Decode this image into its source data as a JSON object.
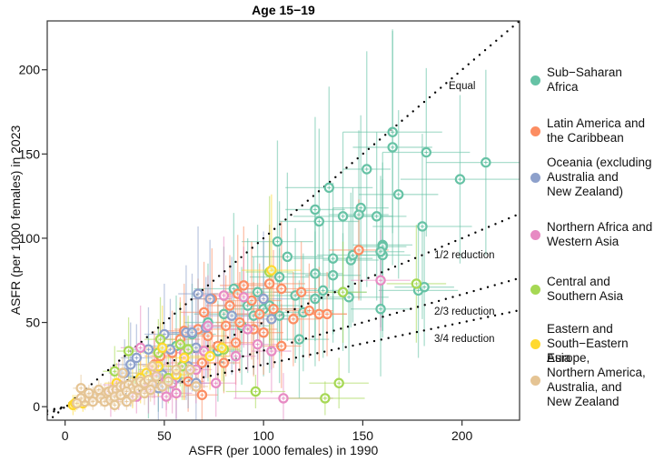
{
  "chart_data": {
    "type": "scatter",
    "title": "Age 15−19",
    "xlabel": "ASFR (per 1000 females) in 1990",
    "ylabel": "ASFR (per 1000 females) in 2023",
    "xlim": [
      -9,
      229
    ],
    "ylim": [
      -8,
      229
    ],
    "xticks": [
      0,
      50,
      100,
      150,
      200
    ],
    "yticks": [
      0,
      50,
      100,
      150,
      200
    ],
    "grid": false,
    "legend_position": "right",
    "reference_lines": [
      {
        "name": "Equal",
        "slope": 1.0,
        "label": "Equal"
      },
      {
        "name": "half",
        "slope": 0.5,
        "label": "1/2 reduction"
      },
      {
        "name": "two-thirds",
        "slope": 0.3333,
        "label": "2/3 reduction"
      },
      {
        "name": "three-quarters",
        "slope": 0.25,
        "label": "3/4 reduction"
      }
    ],
    "series": [
      {
        "name": "Sub−Saharan\nAfrica",
        "color": "#66c2a5",
        "points": [
          [
            165,
            163,
            25,
            60
          ],
          [
            165,
            154,
            20,
            70
          ],
          [
            182,
            151,
            22,
            50
          ],
          [
            212,
            145,
            30,
            55
          ],
          [
            199,
            135,
            30,
            50
          ],
          [
            152,
            141,
            12,
            70
          ],
          [
            168,
            126,
            20,
            50
          ],
          [
            133,
            130,
            22,
            60
          ],
          [
            140,
            113,
            25,
            50
          ],
          [
            180,
            107,
            25,
            55
          ],
          [
            107,
            98,
            18,
            60
          ],
          [
            149,
            118,
            14,
            55
          ],
          [
            160,
            96,
            15,
            55
          ],
          [
            157,
            113,
            15,
            50
          ],
          [
            178,
            69,
            20,
            40
          ],
          [
            181,
            71,
            15,
            35
          ],
          [
            159,
            58,
            15,
            40
          ],
          [
            148,
            114,
            15,
            50
          ],
          [
            128,
            110,
            20,
            55
          ],
          [
            126,
            117,
            15,
            55
          ],
          [
            112,
            89,
            18,
            50
          ],
          [
            135,
            88,
            20,
            45
          ],
          [
            144,
            87,
            14,
            40
          ],
          [
            145,
            90,
            18,
            40
          ],
          [
            160,
            90,
            14,
            45
          ],
          [
            108,
            77,
            15,
            45
          ],
          [
            126,
            64,
            14,
            40
          ],
          [
            130,
            69,
            12,
            40
          ],
          [
            143,
            65,
            20,
            45
          ],
          [
            140,
            68,
            12,
            35
          ],
          [
            126,
            79,
            14,
            40
          ],
          [
            116,
            66,
            15,
            40
          ],
          [
            85,
            70,
            20,
            45
          ],
          [
            97,
            68,
            18,
            40
          ],
          [
            92,
            60,
            15,
            40
          ],
          [
            100,
            58,
            15,
            40
          ],
          [
            108,
            54,
            12,
            40
          ],
          [
            120,
            56,
            14,
            35
          ],
          [
            135,
            78,
            14,
            40
          ],
          [
            118,
            40,
            15,
            35
          ],
          [
            103,
            60,
            15,
            40
          ],
          [
            80,
            55,
            15,
            40
          ],
          [
            72,
            50,
            12,
            35
          ],
          [
            89,
            48,
            14,
            35
          ],
          [
            64,
            43,
            12,
            30
          ],
          [
            56,
            36,
            12,
            30
          ],
          [
            47,
            22,
            10,
            25
          ],
          [
            42,
            18,
            10,
            25
          ],
          [
            77,
            33,
            12,
            30
          ],
          [
            95,
            54,
            12,
            35
          ],
          [
            160,
            95,
            12,
            50
          ],
          [
            159,
            92,
            12,
            45
          ]
        ]
      },
      {
        "name": "Latin America and\nthe Caribbean",
        "color": "#fc8d62",
        "points": [
          [
            148,
            93,
            15,
            30
          ],
          [
            109,
            70,
            18,
            40
          ],
          [
            103,
            73,
            18,
            35
          ],
          [
            105,
            58,
            14,
            35
          ],
          [
            87,
            67,
            14,
            35
          ],
          [
            94,
            63,
            15,
            35
          ],
          [
            119,
            68,
            14,
            30
          ],
          [
            128,
            55,
            14,
            28
          ],
          [
            115,
            52,
            14,
            28
          ],
          [
            123,
            57,
            12,
            28
          ],
          [
            132,
            55,
            10,
            25
          ],
          [
            98,
            55,
            12,
            30
          ],
          [
            83,
            60,
            12,
            30
          ],
          [
            81,
            48,
            12,
            30
          ],
          [
            95,
            46,
            12,
            28
          ],
          [
            88,
            50,
            12,
            30
          ],
          [
            70,
            56,
            12,
            30
          ],
          [
            67,
            46,
            12,
            30
          ],
          [
            60,
            45,
            10,
            28
          ],
          [
            72,
            42,
            10,
            25
          ],
          [
            77,
            36,
            10,
            25
          ],
          [
            86,
            38,
            10,
            25
          ],
          [
            100,
            44,
            10,
            25
          ],
          [
            109,
            36,
            10,
            25
          ],
          [
            54,
            32,
            10,
            25
          ],
          [
            60,
            26,
            10,
            22
          ],
          [
            69,
            26,
            8,
            20
          ],
          [
            80,
            26,
            8,
            18
          ],
          [
            62,
            15,
            8,
            18
          ],
          [
            69,
            7,
            8,
            15
          ],
          [
            45,
            25,
            8,
            20
          ],
          [
            48,
            30,
            8,
            20
          ],
          [
            58,
            40,
            10,
            25
          ],
          [
            74,
            64,
            10,
            30
          ],
          [
            90,
            72,
            12,
            35
          ]
        ]
      },
      {
        "name": "Oceania (excluding\nAustralia and\nNew Zealand)",
        "color": "#8da0cb",
        "points": [
          [
            61,
            44,
            10,
            40
          ],
          [
            64,
            44,
            10,
            35
          ],
          [
            53,
            34,
            10,
            30
          ],
          [
            50,
            43,
            10,
            30
          ],
          [
            84,
            54,
            12,
            35
          ],
          [
            67,
            67,
            10,
            40
          ],
          [
            73,
            64,
            10,
            35
          ],
          [
            100,
            64,
            12,
            40
          ],
          [
            62,
            24,
            10,
            25
          ],
          [
            56,
            17,
            8,
            25
          ],
          [
            66,
            35,
            10,
            30
          ],
          [
            47,
            11,
            8,
            20
          ],
          [
            66,
            14,
            8,
            22
          ],
          [
            30,
            20,
            8,
            20
          ],
          [
            33,
            25,
            8,
            25
          ],
          [
            49,
            19,
            8,
            20
          ],
          [
            42,
            34,
            10,
            25
          ],
          [
            36,
            29,
            8,
            20
          ],
          [
            104,
            52,
            12,
            30
          ],
          [
            71,
            47,
            10,
            30
          ]
        ]
      },
      {
        "name": "Northern Africa and\nWestern Asia",
        "color": "#e78ac3",
        "points": [
          [
            159,
            75,
            15,
            30
          ],
          [
            110,
            5,
            25,
            15
          ],
          [
            51,
            6,
            10,
            12
          ],
          [
            38,
            35,
            10,
            25
          ],
          [
            60,
            32,
            10,
            25
          ],
          [
            80,
            66,
            12,
            35
          ],
          [
            90,
            65,
            10,
            30
          ],
          [
            72,
            48,
            10,
            30
          ],
          [
            92,
            46,
            10,
            25
          ],
          [
            66,
            22,
            8,
            20
          ],
          [
            54,
            14,
            8,
            18
          ],
          [
            56,
            8,
            8,
            15
          ],
          [
            76,
            14,
            10,
            20
          ],
          [
            23,
            9,
            6,
            15
          ],
          [
            42,
            11,
            6,
            15
          ],
          [
            27,
            13,
            8,
            15
          ],
          [
            45,
            21,
            8,
            20
          ],
          [
            86,
            30,
            10,
            25
          ],
          [
            104,
            33,
            10,
            25
          ],
          [
            97,
            37,
            10,
            25
          ],
          [
            36,
            6,
            6,
            10
          ],
          [
            70,
            33,
            10,
            22
          ],
          [
            51,
            16,
            8,
            18
          ]
        ]
      },
      {
        "name": "Central and\nSouthern Asia",
        "color": "#a6d854",
        "points": [
          [
            177,
            73,
            15,
            35
          ],
          [
            140,
            68,
            12,
            30
          ],
          [
            138,
            14,
            15,
            15
          ],
          [
            131,
            5,
            20,
            10
          ],
          [
            96,
            9,
            15,
            10
          ],
          [
            25,
            21,
            6,
            15
          ],
          [
            32,
            33,
            6,
            20
          ],
          [
            47,
            32,
            8,
            20
          ],
          [
            48,
            40,
            8,
            25
          ],
          [
            58,
            37,
            8,
            25
          ],
          [
            62,
            34,
            8,
            20
          ],
          [
            59,
            24,
            8,
            20
          ],
          [
            37,
            15,
            6,
            12
          ],
          [
            103,
            80,
            12,
            45
          ],
          [
            80,
            34,
            8,
            25
          ],
          [
            52,
            17,
            8,
            15
          ]
        ]
      },
      {
        "name": "Eastern and\nSouth−Eastern Asia",
        "color": "#ffd92f",
        "points": [
          [
            104,
            81,
            15,
            45
          ],
          [
            49,
            35,
            8,
            25
          ],
          [
            60,
            29,
            10,
            25
          ],
          [
            73,
            30,
            10,
            20
          ],
          [
            41,
            20,
            6,
            15
          ],
          [
            38,
            17,
            6,
            15
          ],
          [
            26,
            14,
            6,
            12
          ],
          [
            4,
            1,
            3,
            6
          ],
          [
            5,
            2,
            3,
            5
          ],
          [
            9,
            2,
            3,
            5
          ],
          [
            47,
            24,
            8,
            18
          ],
          [
            34,
            11,
            6,
            12
          ],
          [
            56,
            19,
            8,
            15
          ],
          [
            79,
            35,
            8,
            20
          ]
        ]
      },
      {
        "name": "Europe,\nNorthern America,\nAustralia, and\nNew Zealand",
        "color": "#e5c494",
        "points": [
          [
            8,
            11,
            4,
            8
          ],
          [
            10,
            3,
            3,
            5
          ],
          [
            12,
            5,
            3,
            5
          ],
          [
            14,
            6,
            3,
            6
          ],
          [
            16,
            7,
            3,
            6
          ],
          [
            18,
            8,
            3,
            6
          ],
          [
            20,
            8,
            3,
            6
          ],
          [
            22,
            9,
            3,
            6
          ],
          [
            24,
            10,
            4,
            7
          ],
          [
            26,
            10,
            4,
            7
          ],
          [
            28,
            12,
            4,
            7
          ],
          [
            30,
            12,
            4,
            8
          ],
          [
            32,
            13,
            4,
            8
          ],
          [
            34,
            11,
            4,
            8
          ],
          [
            36,
            14,
            4,
            8
          ],
          [
            38,
            15,
            4,
            8
          ],
          [
            40,
            14,
            5,
            9
          ],
          [
            42,
            16,
            5,
            9
          ],
          [
            44,
            13,
            5,
            8
          ],
          [
            46,
            18,
            5,
            10
          ],
          [
            14,
            3,
            3,
            5
          ],
          [
            18,
            5,
            3,
            5
          ],
          [
            20,
            3,
            3,
            5
          ],
          [
            23,
            4,
            3,
            5
          ],
          [
            25,
            6,
            3,
            5
          ],
          [
            28,
            7,
            3,
            6
          ],
          [
            31,
            9,
            4,
            6
          ],
          [
            34,
            6,
            4,
            6
          ],
          [
            37,
            10,
            4,
            7
          ],
          [
            40,
            8,
            4,
            7
          ],
          [
            43,
            10,
            4,
            7
          ],
          [
            49,
            12,
            5,
            8
          ],
          [
            52,
            15,
            5,
            9
          ],
          [
            56,
            22,
            6,
            12
          ],
          [
            63,
            22,
            6,
            12
          ],
          [
            29,
            20,
            4,
            10
          ],
          [
            17,
            10,
            3,
            6
          ],
          [
            12,
            8,
            3,
            5
          ],
          [
            8,
            5,
            3,
            4
          ],
          [
            6,
            2,
            3,
            4
          ],
          [
            44,
            24,
            5,
            10
          ],
          [
            66,
            12,
            6,
            8
          ],
          [
            31,
            3,
            4,
            5
          ],
          [
            25,
            1,
            3,
            4
          ]
        ]
      }
    ]
  }
}
